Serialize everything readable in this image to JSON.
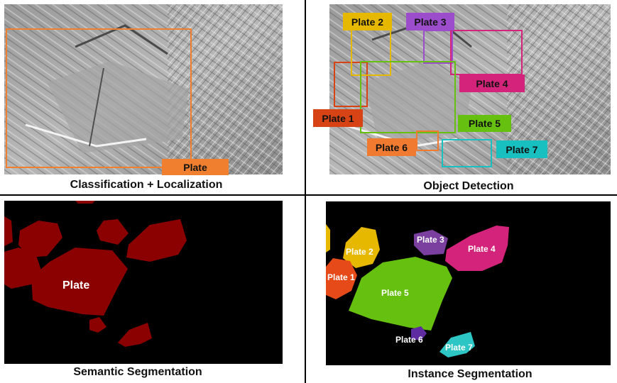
{
  "panels": {
    "classification": {
      "caption": "Classification + Localization",
      "tag": "Plate"
    },
    "detection": {
      "caption": "Object Detection",
      "plates": [
        {
          "label": "Plate 1",
          "color": "#d84315"
        },
        {
          "label": "Plate 2",
          "color": "#e6b800"
        },
        {
          "label": "Plate 3",
          "color": "#9c4dcc"
        },
        {
          "label": "Plate 4",
          "color": "#d4237a"
        },
        {
          "label": "Plate 5",
          "color": "#66c010"
        },
        {
          "label": "Plate 6",
          "color": "#f07a30"
        },
        {
          "label": "Plate 7",
          "color": "#18c0c0"
        }
      ]
    },
    "semantic": {
      "caption": "Semantic Segmentation",
      "label": "Plate",
      "color": "#8b0000"
    },
    "instance": {
      "caption": "Instance Segmentation",
      "plates": [
        {
          "label": "Plate 1"
        },
        {
          "label": "Plate 2"
        },
        {
          "label": "Plate 3"
        },
        {
          "label": "Plate 4"
        },
        {
          "label": "Plate 5"
        },
        {
          "label": "Plate 6"
        },
        {
          "label": "Plate 7"
        }
      ]
    }
  },
  "colors": {
    "box_orange": "#f08030",
    "divider": "#000000"
  }
}
